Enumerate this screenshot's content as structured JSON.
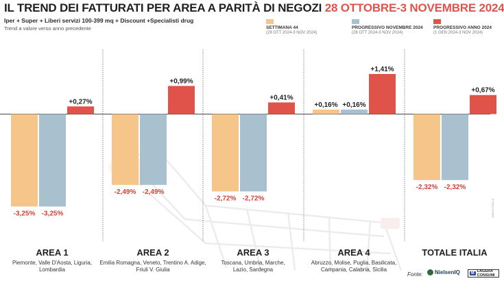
{
  "header": {
    "title_main": "IL TREND DEI FATTURATI PER AREA A PARITÀ DI NEGOZI",
    "title_dates": "28 OTTOBRE-3 NOVEMBRE 2024",
    "subtitle": "Iper + Super + Liberi servizi 100-399 mq + Discount +Specialisti drug",
    "note": "Trend a valore verso anno precedente"
  },
  "legend": [
    {
      "label": "SETTIMANA 44",
      "sub": "(28 OTT 2024-3 NOV 2024)",
      "color": "#f6c58a"
    },
    {
      "label": "PROGRESSIVO NOVEMBRE 2024",
      "sub": "(28 OTT 2024-3 NOV 2024)",
      "color": "#a9c0cf"
    },
    {
      "label": "PROGRESSIVO ANNO 2024",
      "sub": "(1 GEN 2024-3 NOV 2024)",
      "color": "#e0534b"
    }
  ],
  "chart_data": {
    "type": "bar",
    "categories": [
      "AREA 1",
      "AREA 2",
      "AREA 3",
      "AREA 4",
      "TOTALE ITALIA"
    ],
    "category_details": [
      "Piemonte, Valle D'Aosta, Liguria, Lombardia",
      "Emilia Romagna, Veneto, Trentino A. Adige, Friuli V. Giulia",
      "Toscana, Umbria, Marche, Lazio, Sardegna",
      "Abruzzo, Molise, Puglia, Basilicata, Campania, Calabria, Sicilia",
      ""
    ],
    "series": [
      {
        "name": "SETTIMANA 44",
        "values": [
          -3.25,
          -2.49,
          -2.72,
          0.16,
          -2.32
        ],
        "labels": [
          "-3,25%",
          "-2,49%",
          "-2,72%",
          "+0,16%",
          "-2,32%"
        ]
      },
      {
        "name": "PROGRESSIVO NOVEMBRE 2024",
        "values": [
          -3.25,
          -2.49,
          -2.72,
          0.16,
          -2.32
        ],
        "labels": [
          "-3,25%",
          "-2,49%",
          "-2,72%",
          "+0,16%",
          "-2,32%"
        ]
      },
      {
        "name": "PROGRESSIVO ANNO 2024",
        "values": [
          0.27,
          0.99,
          0.41,
          1.41,
          0.67
        ],
        "labels": [
          "+0,27%",
          "+0,99%",
          "+0,41%",
          "+1,41%",
          "+0,67%"
        ]
      }
    ],
    "colors": [
      "#f6c58a",
      "#a9c0cf",
      "#e0534b"
    ],
    "negative_label_color": "#d8403a",
    "legend_position": "top-right",
    "grid": false
  },
  "footer": {
    "source_label": "Fonte:",
    "logo_nielsen": "NielsenIQ",
    "logo_mark": "M",
    "logo_other": "LAGERA CONSUMI",
    "credit": "ORA DI COLLA"
  }
}
